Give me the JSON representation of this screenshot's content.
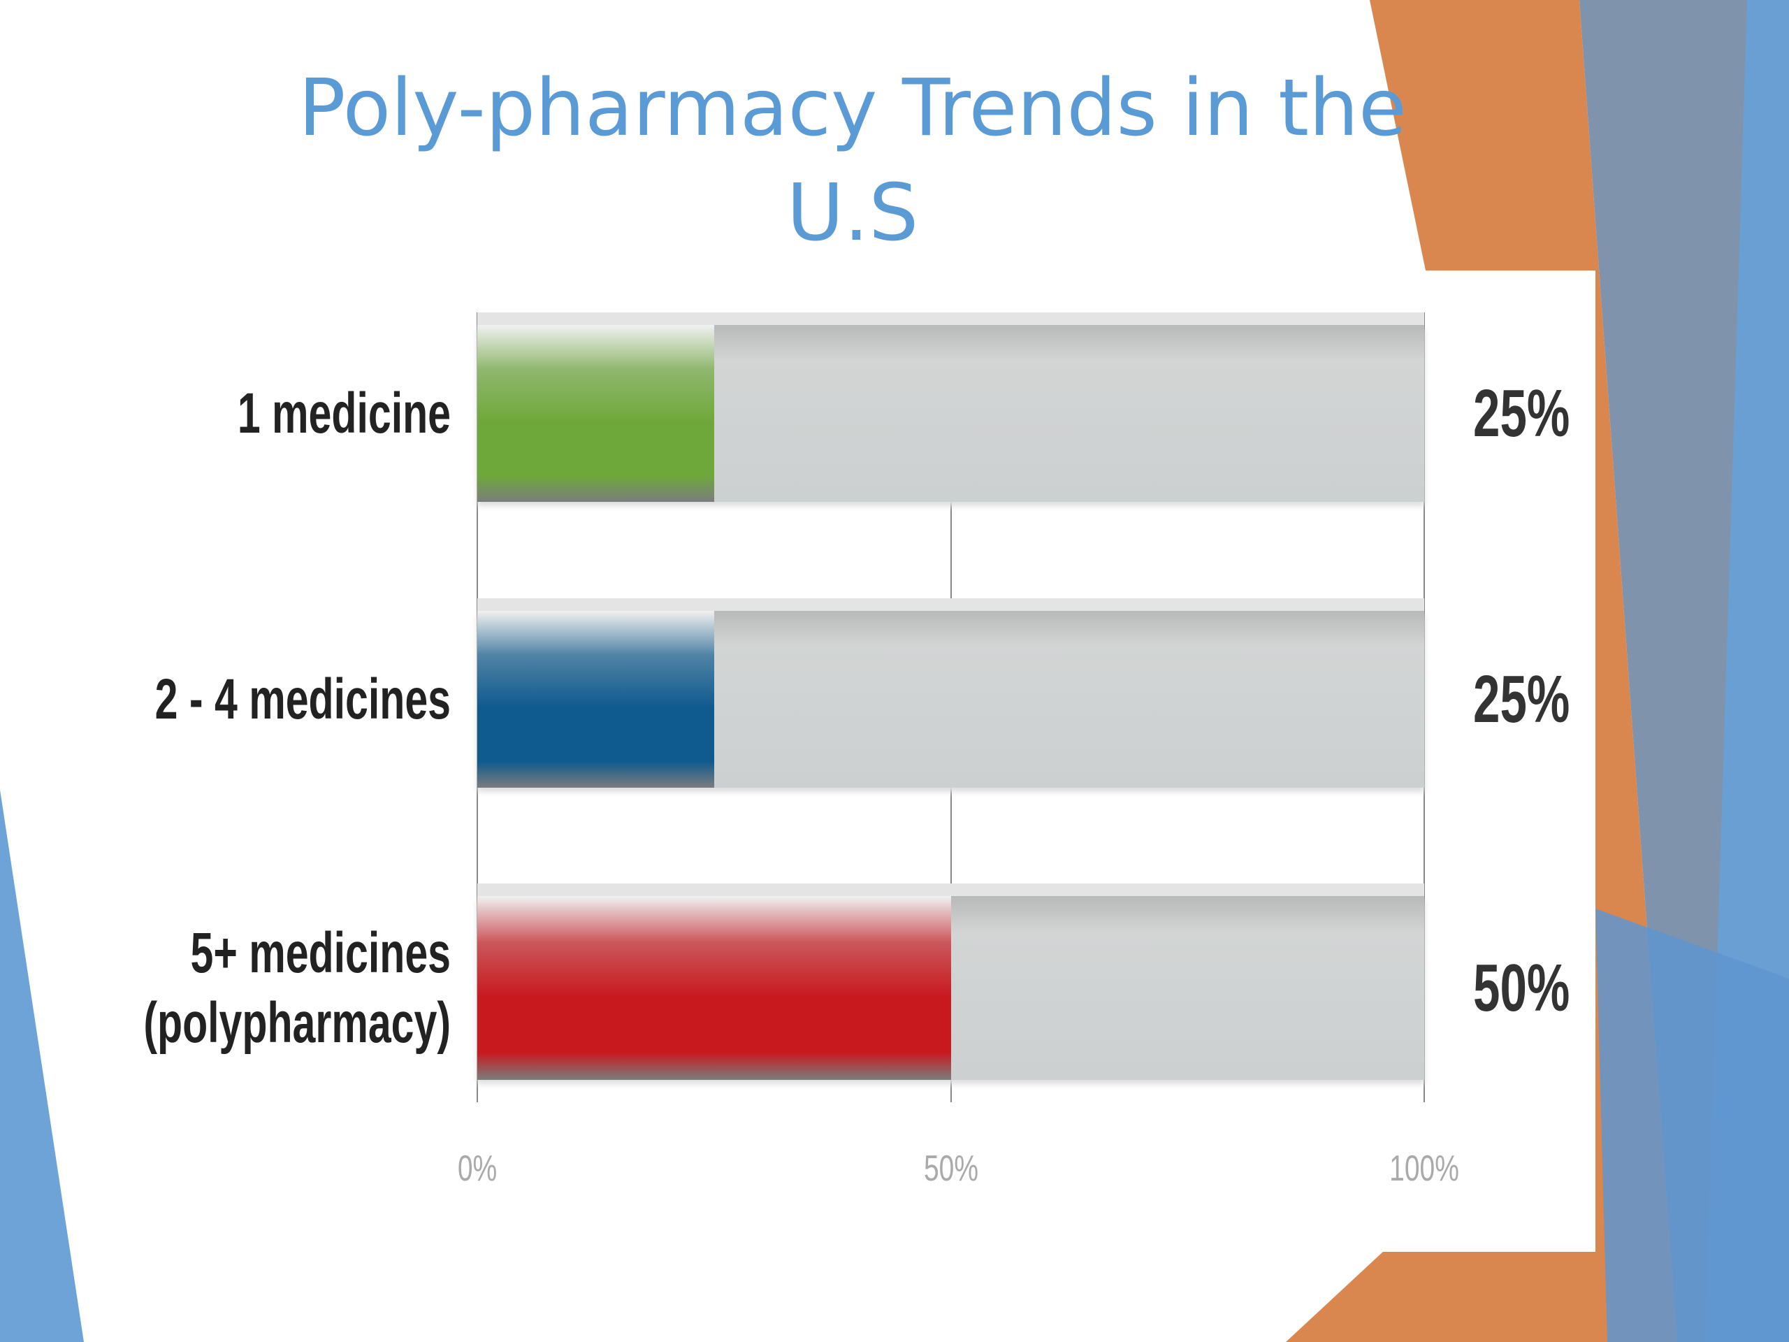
{
  "chart_data": {
    "type": "bar",
    "orientation": "horizontal",
    "title": "Poly-pharmacy Trends in the U.S",
    "categories": [
      "1 medicine",
      "2 - 4 medicines",
      "5+ medicines (polypharmacy)"
    ],
    "values": [
      25,
      25,
      50
    ],
    "value_labels": [
      "25%",
      "25%",
      "50%"
    ],
    "colors": [
      "#6fa83a",
      "#0f5a8e",
      "#c8191f"
    ],
    "xlim": [
      0,
      100
    ],
    "xticks": [
      {
        "value": 0,
        "label": "0%"
      },
      {
        "value": 50,
        "label": "50%"
      },
      {
        "value": 100,
        "label": "100%"
      }
    ],
    "grid": true
  }
}
